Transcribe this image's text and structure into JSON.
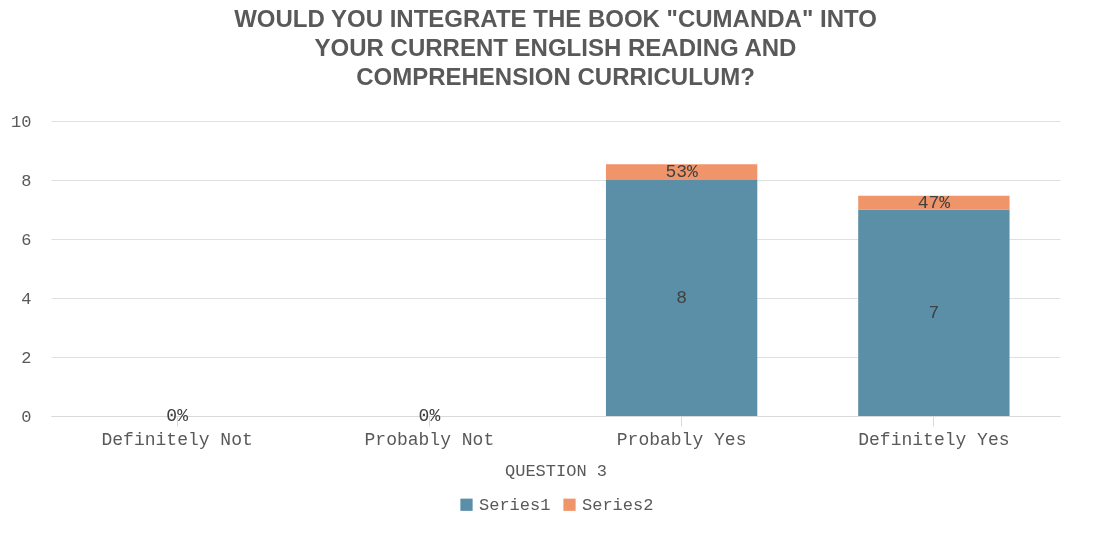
{
  "chart_data": {
    "type": "bar",
    "title": "WOULD YOU INTEGRATE THE BOOK \"CUMANDA\" INTO YOUR CURRENT ENGLISH READING AND COMPREHENSION CURRICULUM?",
    "xlabel": "QUESTION 3",
    "categories": [
      "Definitely Not",
      "Probably Not",
      "Probably Yes",
      "Definitely Yes"
    ],
    "stacked": true,
    "series": [
      {
        "name": "Series1",
        "color": "#5b8fa8",
        "values": [
          0,
          0,
          8,
          7
        ],
        "value_labels": [
          null,
          null,
          "8",
          "7"
        ]
      },
      {
        "name": "Series2",
        "color": "#f0956a",
        "values": [
          0,
          0,
          0.53,
          0.47
        ],
        "value_labels": [
          "0%",
          "0%",
          "53%",
          "47%"
        ]
      }
    ],
    "ylim": [
      0,
      10
    ],
    "yticks": [
      0,
      2,
      4,
      6,
      8,
      10
    ],
    "grid": "y",
    "legend": "bottom"
  }
}
